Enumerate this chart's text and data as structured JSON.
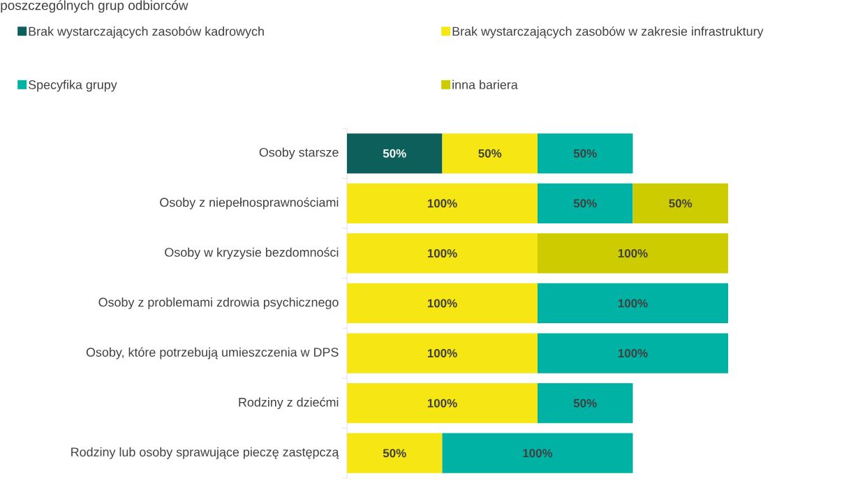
{
  "chart_data": {
    "type": "bar",
    "orientation": "horizontal",
    "stacked": true,
    "title": "poszczególnych grup odbiorców",
    "categories": [
      "Osoby starsze",
      "Osoby z niepełnosprawnościami",
      "Osoby w kryzysie bezdomności",
      "Osoby z problemami zdrowia psychicznego",
      "Osoby, które potrzebują umieszczenia w DPS",
      "Rodziny z dziećmi",
      "Rodziny lub osoby sprawujące pieczę zastępczą"
    ],
    "series": [
      {
        "name": "Brak wystarczających zasobów kadrowych",
        "color": "#0d5f5c",
        "values": [
          50,
          null,
          null,
          null,
          null,
          null,
          null
        ],
        "value_labels": [
          "50%",
          null,
          null,
          null,
          null,
          null,
          null
        ]
      },
      {
        "name": "Brak wystarczających zasobów w zakresie infrastruktury",
        "color": "#f5e614",
        "values": [
          50,
          100,
          100,
          100,
          100,
          100,
          50
        ],
        "value_labels": [
          "50%",
          "100%",
          "100%",
          "100%",
          "100%",
          "100%",
          "50%"
        ]
      },
      {
        "name": "Specyfika grupy",
        "color": "#00b2a3",
        "values": [
          50,
          50,
          null,
          100,
          100,
          50,
          100
        ],
        "value_labels": [
          "50%",
          "50%",
          null,
          "100%",
          "100%",
          "50%",
          "100%"
        ]
      },
      {
        "name": "inna bariera",
        "color": "#cccc00",
        "values": [
          null,
          50,
          100,
          null,
          null,
          null,
          null
        ],
        "value_labels": [
          null,
          "50%",
          "100%",
          null,
          null,
          null,
          null
        ]
      }
    ],
    "xlim": [
      0,
      200
    ],
    "tick_labels": "y",
    "legend": "top",
    "grid": false
  }
}
